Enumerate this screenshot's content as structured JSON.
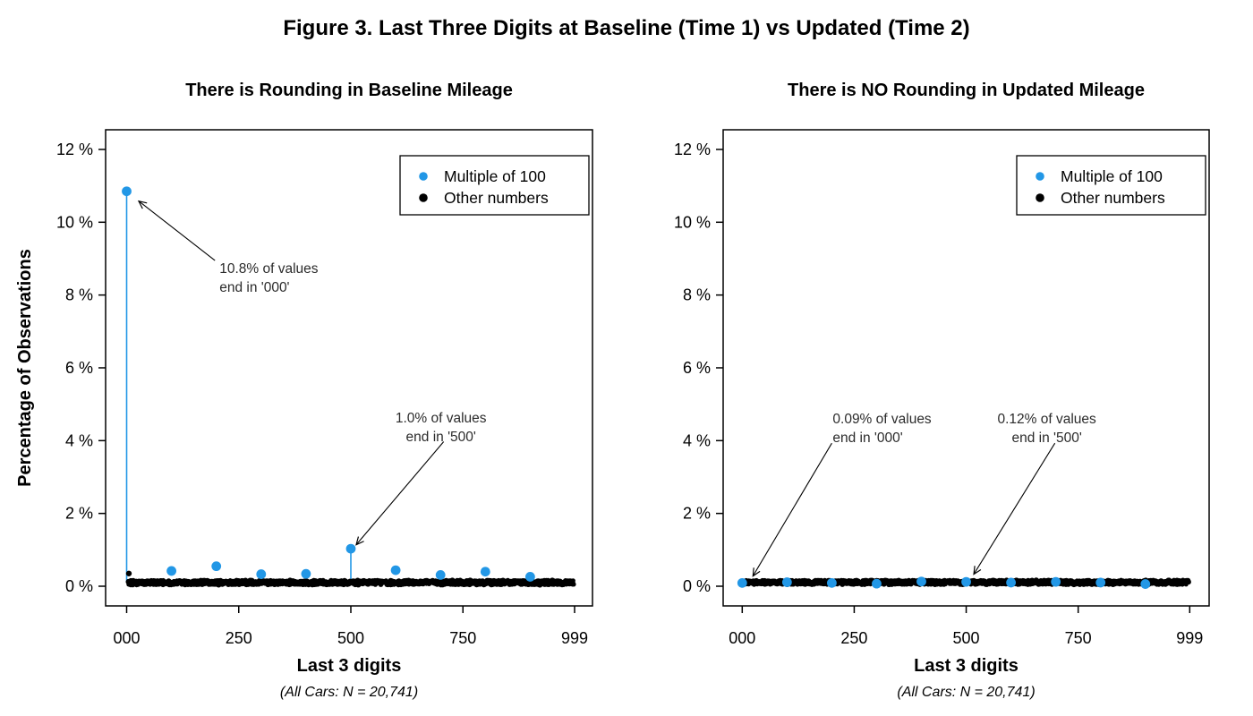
{
  "figure": {
    "title": "Figure 3. Last Three Digits at Baseline (Time 1) vs Updated (Time 2)",
    "background_color": "#ffffff",
    "text_color": "#000000",
    "accent_blue": "#2297E6",
    "point_black": "#000000"
  },
  "chart_data": [
    {
      "type": "scatter",
      "panel": "left",
      "title": "There is Rounding in Baseline Mileage",
      "xlabel": "Last 3 digits",
      "caption": "(All Cars: N = 20,741)",
      "ylabel": "Percentage of Observations",
      "xlim": [
        0,
        999
      ],
      "ylim": [
        0,
        12.5
      ],
      "grid": false,
      "legend_position": "top-right",
      "yticks": [
        0,
        2,
        4,
        6,
        8,
        10,
        12
      ],
      "ytick_suffix": " %",
      "xticks": [
        {
          "v": 0,
          "label": "000"
        },
        {
          "v": 250,
          "label": "250"
        },
        {
          "v": 500,
          "label": "500"
        },
        {
          "v": 750,
          "label": "750"
        },
        {
          "v": 999,
          "label": "999"
        }
      ],
      "series": [
        {
          "name": "Multiple of 100",
          "color": "#2297E6",
          "marker": "filled-circle",
          "x": [
            0,
            100,
            200,
            300,
            400,
            500,
            600,
            700,
            800,
            900
          ],
          "y": [
            10.85,
            0.42,
            0.55,
            0.33,
            0.34,
            1.03,
            0.44,
            0.31,
            0.4,
            0.26
          ],
          "stems": [
            {
              "x": 0,
              "from": 0.13,
              "to": 10.85
            },
            {
              "x": 500,
              "from": 0.15,
              "to": 1.03
            }
          ]
        },
        {
          "name": "Other numbers",
          "color": "#000000",
          "marker": "filled-circle",
          "band": {
            "x_min": 3,
            "x_max": 997,
            "y_min": 0.04,
            "y_max": 0.16,
            "note": "dense band: every non-multiple-of-100 ending sits near 0.04-0.16%"
          },
          "extra_points": [
            {
              "x": 5,
              "y": 0.35
            }
          ]
        }
      ],
      "annotations": [
        {
          "text": [
            "10.8% of values",
            "end in '000'"
          ],
          "anchor": "start",
          "tx": 207,
          "ty": 8.61,
          "arrow": {
            "x1": 197,
            "y1": 8.95,
            "x2": 27,
            "y2": 10.58
          }
        },
        {
          "text": [
            "1.0% of values",
            "end in '500'"
          ],
          "anchor": "middle",
          "tx": 701,
          "ty": 4.5,
          "arrow": {
            "x1": 707,
            "y1": 3.97,
            "x2": 512,
            "y2": 1.14
          }
        }
      ]
    },
    {
      "type": "scatter",
      "panel": "right",
      "title": "There is NO Rounding in Updated Mileage",
      "xlabel": "Last 3 digits",
      "caption": "(All Cars: N = 20,741)",
      "ylabel": "",
      "xlim": [
        0,
        999
      ],
      "ylim": [
        0,
        12.5
      ],
      "grid": false,
      "legend_position": "top-right",
      "yticks": [
        0,
        2,
        4,
        6,
        8,
        10,
        12
      ],
      "ytick_suffix": " %",
      "xticks": [
        {
          "v": 0,
          "label": "000"
        },
        {
          "v": 250,
          "label": "250"
        },
        {
          "v": 500,
          "label": "500"
        },
        {
          "v": 750,
          "label": "750"
        },
        {
          "v": 999,
          "label": "999"
        }
      ],
      "series": [
        {
          "name": "Multiple of 100",
          "color": "#2297E6",
          "marker": "filled-circle",
          "x": [
            0,
            100,
            200,
            300,
            400,
            500,
            600,
            700,
            800,
            900
          ],
          "y": [
            0.09,
            0.11,
            0.09,
            0.07,
            0.13,
            0.12,
            0.1,
            0.12,
            0.1,
            0.06
          ],
          "stems": []
        },
        {
          "name": "Other numbers",
          "color": "#000000",
          "marker": "filled-circle",
          "band": {
            "x_min": 3,
            "x_max": 997,
            "y_min": 0.05,
            "y_max": 0.16,
            "note": "dense band: every ending sits near 0.05-0.16%"
          },
          "extra_points": []
        }
      ],
      "annotations": [
        {
          "text": [
            "0.09% of values",
            "end in '000'"
          ],
          "anchor": "start",
          "tx": 202,
          "ty": 4.48,
          "arrow": {
            "x1": 200,
            "y1": 3.93,
            "x2": 24,
            "y2": 0.28
          }
        },
        {
          "text": [
            "0.12% of values",
            "end in '500'"
          ],
          "anchor": "middle",
          "tx": 680,
          "ty": 4.48,
          "arrow": {
            "x1": 698,
            "y1": 3.93,
            "x2": 517,
            "y2": 0.33
          }
        }
      ]
    }
  ]
}
